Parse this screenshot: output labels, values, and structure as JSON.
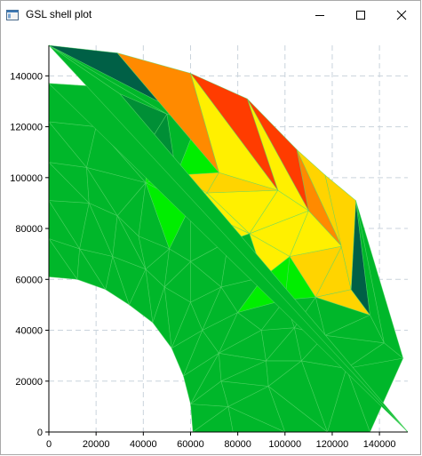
{
  "window": {
    "title": "GSL shell plot"
  },
  "icons": {
    "app": "app-window-icon",
    "minimize": "minimize-icon",
    "maximize": "maximize-icon",
    "close": "close-icon"
  },
  "chart_data": {
    "type": "mesh",
    "title": "",
    "xlabel": "",
    "ylabel": "",
    "xlim": [
      0,
      152000
    ],
    "ylim": [
      0,
      152000
    ],
    "x_ticks": [
      "0",
      "20000",
      "40000",
      "60000",
      "80000",
      "100000",
      "120000",
      "140000"
    ],
    "y_ticks": [
      "0",
      "20000",
      "40000",
      "60000",
      "80000",
      "100000",
      "120000",
      "140000"
    ],
    "grid": true,
    "colors": {
      "green": "#00b72a",
      "bright_green": "#00ee00",
      "dark_green": "#008f36",
      "teal": "#006046",
      "yellow": "#fff000",
      "yellow_orange": "#ffd400",
      "orange": "#ff8a00",
      "red": "#ff3c00"
    },
    "nodes": [
      [
        0,
        61000
      ],
      [
        12000,
        60000
      ],
      [
        24000,
        56000
      ],
      [
        34000,
        50000
      ],
      [
        44000,
        43000
      ],
      [
        52000,
        33000
      ],
      [
        57000,
        22000
      ],
      [
        60000,
        11000
      ],
      [
        61000,
        0
      ],
      [
        0,
        76000
      ],
      [
        13000,
        72000
      ],
      [
        27000,
        69000
      ],
      [
        41000,
        64000
      ],
      [
        49000,
        57000
      ],
      [
        60000,
        51000
      ],
      [
        65000,
        40000
      ],
      [
        72000,
        31000
      ],
      [
        73000,
        20000
      ],
      [
        76000,
        10000
      ],
      [
        78000,
        0
      ],
      [
        0,
        91000
      ],
      [
        17000,
        90000
      ],
      [
        29000,
        85000
      ],
      [
        38000,
        77000
      ],
      [
        51000,
        72000
      ],
      [
        60000,
        67000
      ],
      [
        73000,
        57000
      ],
      [
        80000,
        47000
      ],
      [
        90000,
        40000
      ],
      [
        92000,
        28000
      ],
      [
        93000,
        18000
      ],
      [
        100000,
        0
      ],
      [
        0,
        106000
      ],
      [
        16000,
        104000
      ],
      [
        41000,
        98000
      ],
      [
        60000,
        89000
      ],
      [
        76000,
        75000
      ],
      [
        91000,
        61000
      ],
      [
        100000,
        52000
      ],
      [
        104000,
        41000
      ],
      [
        107000,
        28000
      ],
      [
        118000,
        0
      ],
      [
        0,
        122000
      ],
      [
        20000,
        120000
      ],
      [
        42000,
        113000
      ],
      [
        54000,
        101000
      ],
      [
        67000,
        94000
      ],
      [
        85000,
        78000
      ],
      [
        102000,
        69000
      ],
      [
        113000,
        53000
      ],
      [
        117000,
        38000
      ],
      [
        126000,
        25000
      ],
      [
        136000,
        0
      ],
      [
        0,
        137000
      ],
      [
        17000,
        136000
      ],
      [
        30000,
        133000
      ],
      [
        50000,
        125000
      ],
      [
        63000,
        122000
      ],
      [
        72000,
        102000
      ],
      [
        97000,
        95000
      ],
      [
        110000,
        87000
      ],
      [
        124000,
        73000
      ],
      [
        128000,
        56000
      ],
      [
        136000,
        46000
      ],
      [
        142000,
        35000
      ],
      [
        150000,
        29000
      ],
      [
        152000,
        0
      ],
      [
        0,
        152000
      ],
      [
        29000,
        149000
      ],
      [
        60000,
        141000
      ],
      [
        84000,
        131000
      ],
      [
        105000,
        111000
      ],
      [
        117000,
        101000
      ],
      [
        130000,
        91000
      ],
      [
        141000,
        78000
      ],
      [
        150000,
        61000
      ]
    ],
    "cells": [
      {
        "n": [
          0,
          1,
          9
        ],
        "c": "green"
      },
      {
        "n": [
          1,
          10,
          9
        ],
        "c": "green"
      },
      {
        "n": [
          1,
          2,
          10
        ],
        "c": "green"
      },
      {
        "n": [
          2,
          11,
          10
        ],
        "c": "green"
      },
      {
        "n": [
          2,
          3,
          11
        ],
        "c": "green"
      },
      {
        "n": [
          3,
          12,
          11
        ],
        "c": "green"
      },
      {
        "n": [
          3,
          4,
          12
        ],
        "c": "green"
      },
      {
        "n": [
          4,
          13,
          12
        ],
        "c": "green"
      },
      {
        "n": [
          4,
          5,
          13
        ],
        "c": "green"
      },
      {
        "n": [
          5,
          14,
          13
        ],
        "c": "green"
      },
      {
        "n": [
          5,
          6,
          15
        ],
        "c": "green"
      },
      {
        "n": [
          5,
          15,
          14
        ],
        "c": "green"
      },
      {
        "n": [
          6,
          16,
          15
        ],
        "c": "green"
      },
      {
        "n": [
          6,
          7,
          16
        ],
        "c": "green"
      },
      {
        "n": [
          7,
          17,
          16
        ],
        "c": "green"
      },
      {
        "n": [
          7,
          8,
          18
        ],
        "c": "green"
      },
      {
        "n": [
          7,
          18,
          17
        ],
        "c": "green"
      },
      {
        "n": [
          8,
          19,
          18
        ],
        "c": "green"
      },
      {
        "n": [
          9,
          10,
          20
        ],
        "c": "green"
      },
      {
        "n": [
          10,
          21,
          20
        ],
        "c": "green"
      },
      {
        "n": [
          10,
          11,
          21
        ],
        "c": "green"
      },
      {
        "n": [
          11,
          22,
          21
        ],
        "c": "green"
      },
      {
        "n": [
          11,
          12,
          22
        ],
        "c": "green"
      },
      {
        "n": [
          12,
          23,
          22
        ],
        "c": "green"
      },
      {
        "n": [
          12,
          13,
          24
        ],
        "c": "green"
      },
      {
        "n": [
          12,
          24,
          23
        ],
        "c": "green"
      },
      {
        "n": [
          13,
          14,
          25
        ],
        "c": "green"
      },
      {
        "n": [
          13,
          25,
          24
        ],
        "c": "green"
      },
      {
        "n": [
          14,
          15,
          26
        ],
        "c": "green"
      },
      {
        "n": [
          14,
          26,
          25
        ],
        "c": "green"
      },
      {
        "n": [
          15,
          16,
          27
        ],
        "c": "green"
      },
      {
        "n": [
          15,
          27,
          26
        ],
        "c": "green"
      },
      {
        "n": [
          16,
          28,
          27
        ],
        "c": "green"
      },
      {
        "n": [
          16,
          17,
          29
        ],
        "c": "green"
      },
      {
        "n": [
          16,
          29,
          28
        ],
        "c": "green"
      },
      {
        "n": [
          17,
          18,
          30
        ],
        "c": "green"
      },
      {
        "n": [
          17,
          30,
          29
        ],
        "c": "green"
      },
      {
        "n": [
          18,
          19,
          31
        ],
        "c": "green"
      },
      {
        "n": [
          18,
          31,
          30
        ],
        "c": "green"
      },
      {
        "n": [
          20,
          21,
          32
        ],
        "c": "green"
      },
      {
        "n": [
          21,
          33,
          32
        ],
        "c": "green"
      },
      {
        "n": [
          21,
          22,
          33
        ],
        "c": "green"
      },
      {
        "n": [
          22,
          23,
          34
        ],
        "c": "green"
      },
      {
        "n": [
          22,
          34,
          33
        ],
        "c": "green"
      },
      {
        "n": [
          23,
          24,
          34
        ],
        "c": "green"
      },
      {
        "n": [
          24,
          25,
          35
        ],
        "c": "green"
      },
      {
        "n": [
          24,
          35,
          34
        ],
        "c": "bright_green"
      },
      {
        "n": [
          25,
          26,
          36
        ],
        "c": "green"
      },
      {
        "n": [
          25,
          36,
          35
        ],
        "c": "green"
      },
      {
        "n": [
          26,
          27,
          37
        ],
        "c": "green"
      },
      {
        "n": [
          26,
          37,
          36
        ],
        "c": "green"
      },
      {
        "n": [
          27,
          28,
          38
        ],
        "c": "green"
      },
      {
        "n": [
          27,
          38,
          37
        ],
        "c": "bright_green"
      },
      {
        "n": [
          28,
          29,
          39
        ],
        "c": "green"
      },
      {
        "n": [
          28,
          39,
          38
        ],
        "c": "green"
      },
      {
        "n": [
          29,
          30,
          40
        ],
        "c": "green"
      },
      {
        "n": [
          29,
          40,
          39
        ],
        "c": "green"
      },
      {
        "n": [
          30,
          31,
          41
        ],
        "c": "green"
      },
      {
        "n": [
          30,
          41,
          40
        ],
        "c": "green"
      },
      {
        "n": [
          32,
          33,
          42
        ],
        "c": "green"
      },
      {
        "n": [
          33,
          43,
          42
        ],
        "c": "green"
      },
      {
        "n": [
          33,
          34,
          43
        ],
        "c": "green"
      },
      {
        "n": [
          34,
          44,
          43
        ],
        "c": "green"
      },
      {
        "n": [
          34,
          35,
          45
        ],
        "c": "bright_green"
      },
      {
        "n": [
          34,
          45,
          44
        ],
        "c": "bright_green"
      },
      {
        "n": [
          35,
          36,
          47
        ],
        "c": "yellow"
      },
      {
        "n": [
          35,
          47,
          46
        ],
        "c": "yellow"
      },
      {
        "n": [
          35,
          46,
          45
        ],
        "c": "yellow"
      },
      {
        "n": [
          36,
          37,
          47
        ],
        "c": "green"
      },
      {
        "n": [
          37,
          38,
          48
        ],
        "c": "bright_green"
      },
      {
        "n": [
          37,
          48,
          47
        ],
        "c": "yellow"
      },
      {
        "n": [
          38,
          39,
          49
        ],
        "c": "green"
      },
      {
        "n": [
          38,
          49,
          48
        ],
        "c": "bright_green"
      },
      {
        "n": [
          39,
          40,
          50
        ],
        "c": "green"
      },
      {
        "n": [
          39,
          50,
          49
        ],
        "c": "green"
      },
      {
        "n": [
          40,
          41,
          51
        ],
        "c": "green"
      },
      {
        "n": [
          40,
          51,
          50
        ],
        "c": "green"
      },
      {
        "n": [
          41,
          52,
          51
        ],
        "c": "green"
      },
      {
        "n": [
          42,
          43,
          53
        ],
        "c": "green"
      },
      {
        "n": [
          43,
          54,
          53
        ],
        "c": "green"
      },
      {
        "n": [
          43,
          44,
          55
        ],
        "c": "dark_green"
      },
      {
        "n": [
          43,
          55,
          54
        ],
        "c": "green"
      },
      {
        "n": [
          44,
          45,
          56
        ],
        "c": "dark_green"
      },
      {
        "n": [
          44,
          56,
          55
        ],
        "c": "dark_green"
      },
      {
        "n": [
          45,
          46,
          58
        ],
        "c": "yellow_orange"
      },
      {
        "n": [
          45,
          58,
          57
        ],
        "c": "bright_green"
      },
      {
        "n": [
          45,
          57,
          56
        ],
        "c": "green"
      },
      {
        "n": [
          46,
          47,
          59
        ],
        "c": "yellow"
      },
      {
        "n": [
          46,
          59,
          58
        ],
        "c": "yellow_orange"
      },
      {
        "n": [
          47,
          48,
          60
        ],
        "c": "yellow"
      },
      {
        "n": [
          47,
          60,
          59
        ],
        "c": "yellow"
      },
      {
        "n": [
          48,
          49,
          61
        ],
        "c": "yellow_orange"
      },
      {
        "n": [
          48,
          61,
          60
        ],
        "c": "yellow"
      },
      {
        "n": [
          49,
          50,
          63
        ],
        "c": "green"
      },
      {
        "n": [
          49,
          63,
          62
        ],
        "c": "yellow_orange"
      },
      {
        "n": [
          49,
          62,
          61
        ],
        "c": "yellow_orange"
      },
      {
        "n": [
          50,
          51,
          64
        ],
        "c": "green"
      },
      {
        "n": [
          50,
          64,
          63
        ],
        "c": "green"
      },
      {
        "n": [
          51,
          52,
          65
        ],
        "c": "green"
      },
      {
        "n": [
          51,
          65,
          64
        ],
        "c": "green"
      },
      {
        "n": [
          53,
          54,
          66
        ],
        "c": "green"
      },
      {
        "n": [
          54,
          55,
          66
        ],
        "c": "green"
      },
      {
        "n": [
          55,
          67,
          66
        ],
        "c": "green"
      },
      {
        "n": [
          55,
          56,
          67
        ],
        "c": "green"
      },
      {
        "n": [
          56,
          57,
          67
        ],
        "c": "green"
      },
      {
        "n": [
          57,
          68,
          67
        ],
        "c": "teal"
      },
      {
        "n": [
          57,
          58,
          68
        ],
        "c": "yellow"
      },
      {
        "n": [
          58,
          59,
          69
        ],
        "c": "yellow"
      },
      {
        "n": [
          58,
          69,
          68
        ],
        "c": "orange"
      },
      {
        "n": [
          59,
          60,
          70
        ],
        "c": "yellow"
      },
      {
        "n": [
          59,
          70,
          69
        ],
        "c": "red"
      },
      {
        "n": [
          60,
          61,
          71
        ],
        "c": "orange"
      },
      {
        "n": [
          60,
          71,
          70
        ],
        "c": "red"
      },
      {
        "n": [
          61,
          62,
          72
        ],
        "c": "yellow_orange"
      },
      {
        "n": [
          61,
          72,
          71
        ],
        "c": "yellow_orange"
      },
      {
        "n": [
          62,
          63,
          73
        ],
        "c": "teal"
      },
      {
        "n": [
          62,
          73,
          72
        ],
        "c": "yellow_orange"
      },
      {
        "n": [
          63,
          64,
          73
        ],
        "c": "green"
      },
      {
        "n": [
          64,
          65,
          73
        ],
        "c": "green"
      }
    ]
  }
}
